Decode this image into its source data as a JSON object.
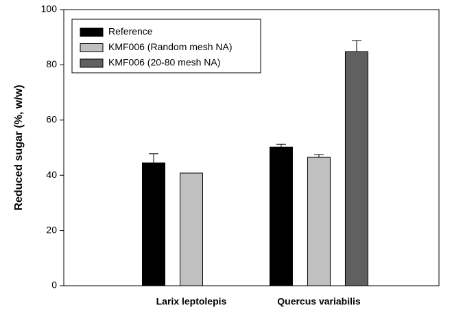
{
  "chart_data": {
    "type": "bar",
    "ylabel": "Reduced sugar (%, w/w)",
    "categories": [
      "Larix leptolepis",
      "Quercus variabilis"
    ],
    "series": [
      {
        "name": "Reference",
        "color": "#000000",
        "values": [
          44.5,
          50.2
        ],
        "errors": [
          3.3,
          1.0
        ]
      },
      {
        "name": "KMF006 (Random mesh NA)",
        "color": "#c0c0c0",
        "values": [
          40.8,
          46.5
        ],
        "errors": [
          null,
          1.0
        ]
      },
      {
        "name": "KMF006 (20-80 mesh NA)",
        "color": "#606060",
        "values": [
          null,
          84.8
        ],
        "errors": [
          null,
          4.0
        ]
      }
    ],
    "ylim": [
      0,
      100
    ],
    "yticks": [
      0,
      20,
      40,
      60,
      80,
      100
    ],
    "legend": "upper left"
  }
}
